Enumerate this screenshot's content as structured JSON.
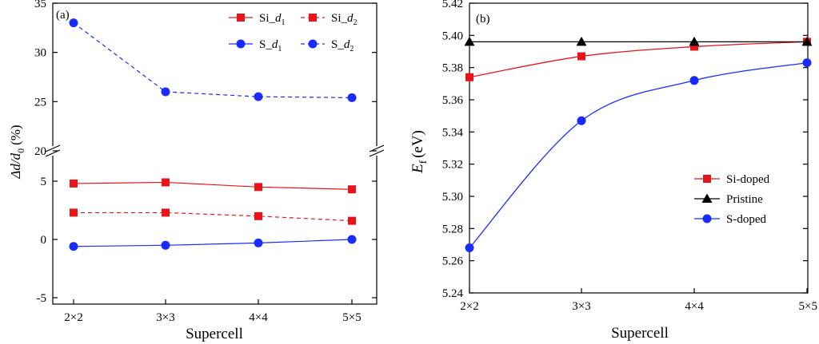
{
  "colors": {
    "red": "#e8141a",
    "blue": "#1a2bff",
    "black": "#000000"
  },
  "chart_data": [
    {
      "type": "line",
      "panel_label": "(a)",
      "xlabel": "Supercell",
      "ylabel_main": "Δd/d",
      "ylabel_sub": "0",
      "ylabel_unit": "(%)",
      "categories": [
        "2×2",
        "3×3",
        "4×4",
        "5×5"
      ],
      "broken_axis": true,
      "lower_ylim": [
        -5,
        7.5
      ],
      "lower_yticks": [
        -5,
        0,
        5
      ],
      "upper_ylim": [
        20,
        35
      ],
      "upper_yticks": [
        20,
        25,
        30,
        35
      ],
      "series": [
        {
          "name": "Si_d1",
          "legend_base": "Si_",
          "legend_var": "d",
          "legend_sub": "1",
          "color": "#e8141a",
          "marker": "square",
          "dash": false,
          "segment": "lower",
          "values": [
            4.8,
            4.9,
            4.5,
            4.3
          ]
        },
        {
          "name": "Si_d2",
          "legend_base": "Si_",
          "legend_var": "d",
          "legend_sub": "2",
          "color": "#e8141a",
          "marker": "square",
          "dash": true,
          "segment": "lower",
          "values": [
            2.3,
            2.3,
            2.0,
            1.6
          ]
        },
        {
          "name": "S_d1",
          "legend_base": "S_",
          "legend_var": "d",
          "legend_sub": "1",
          "color": "#1a2bff",
          "marker": "circle",
          "dash": false,
          "segment": "lower",
          "values": [
            -0.6,
            -0.5,
            -0.3,
            0.0
          ]
        },
        {
          "name": "S_d2",
          "legend_base": "S_",
          "legend_var": "d",
          "legend_sub": "2",
          "color": "#1a2bff",
          "marker": "circle",
          "dash": true,
          "segment": "upper",
          "values": [
            33.0,
            26.0,
            25.5,
            25.4
          ]
        }
      ]
    },
    {
      "type": "line",
      "panel_label": "(b)",
      "xlabel": "Supercell",
      "ylabel_main": "E",
      "ylabel_sub": "f",
      "ylabel_unit": "(eV)",
      "categories": [
        "2×2",
        "3×3",
        "4×4",
        "5×5"
      ],
      "ylim": [
        5.24,
        5.42
      ],
      "yticks": [
        5.24,
        5.26,
        5.28,
        5.3,
        5.32,
        5.34,
        5.36,
        5.38,
        5.4,
        5.42
      ],
      "ytick_labels": [
        "5.24",
        "5.26",
        "5.28",
        "5.30",
        "5.32",
        "5.34",
        "5.36",
        "5.38",
        "5.40",
        "5.42"
      ],
      "series": [
        {
          "name": "Si-doped",
          "color": "#e8141a",
          "marker": "square",
          "values": [
            5.374,
            5.387,
            5.393,
            5.396
          ]
        },
        {
          "name": "Pristine",
          "color": "#000000",
          "marker": "triangle",
          "values": [
            5.396,
            5.396,
            5.396,
            5.396
          ]
        },
        {
          "name": "S-doped",
          "color": "#1a2bff",
          "marker": "circle",
          "values": [
            5.268,
            5.347,
            5.372,
            5.383
          ]
        }
      ]
    }
  ]
}
